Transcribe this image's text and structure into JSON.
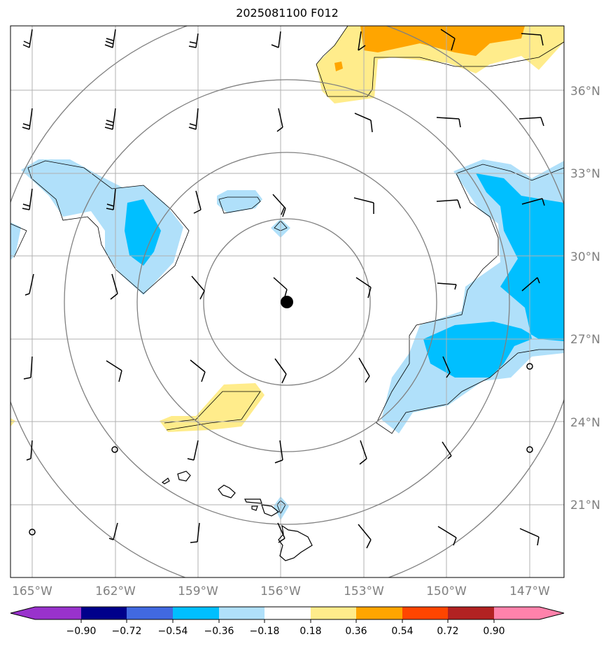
{
  "title": "2025081100 F012",
  "map": {
    "lon_labels": [
      "165°W",
      "162°W",
      "159°W",
      "156°W",
      "153°W",
      "150°W",
      "147°W"
    ],
    "lat_labels": [
      "36°N",
      "33°N",
      "30°N",
      "27°N",
      "24°N",
      "21°N"
    ],
    "center_marker": {
      "lat": 28.4,
      "lon": -155.8
    },
    "colors": {
      "grid": "#b0b0b0",
      "rings": "#808080",
      "light_blue": "#b0e0fa",
      "cyan": "#00bfff",
      "yellow": "#ffec8b",
      "orange": "#ffa500",
      "tick_label": "#808080"
    }
  },
  "colorbar": {
    "tick_labels": [
      "−0.90",
      "−0.72",
      "−0.54",
      "−0.36",
      "−0.18",
      "0.18",
      "0.36",
      "0.54",
      "0.72",
      "0.90"
    ],
    "segments": [
      {
        "color": "#9932cc"
      },
      {
        "color": "#00008b"
      },
      {
        "color": "#4169e1"
      },
      {
        "color": "#00bfff"
      },
      {
        "color": "#b0e0fa"
      },
      {
        "color": "#ffffff"
      },
      {
        "color": "#ffec8b"
      },
      {
        "color": "#ffa500"
      },
      {
        "color": "#ff4500"
      },
      {
        "color": "#b22222"
      },
      {
        "color": "#ff82ab"
      }
    ]
  }
}
